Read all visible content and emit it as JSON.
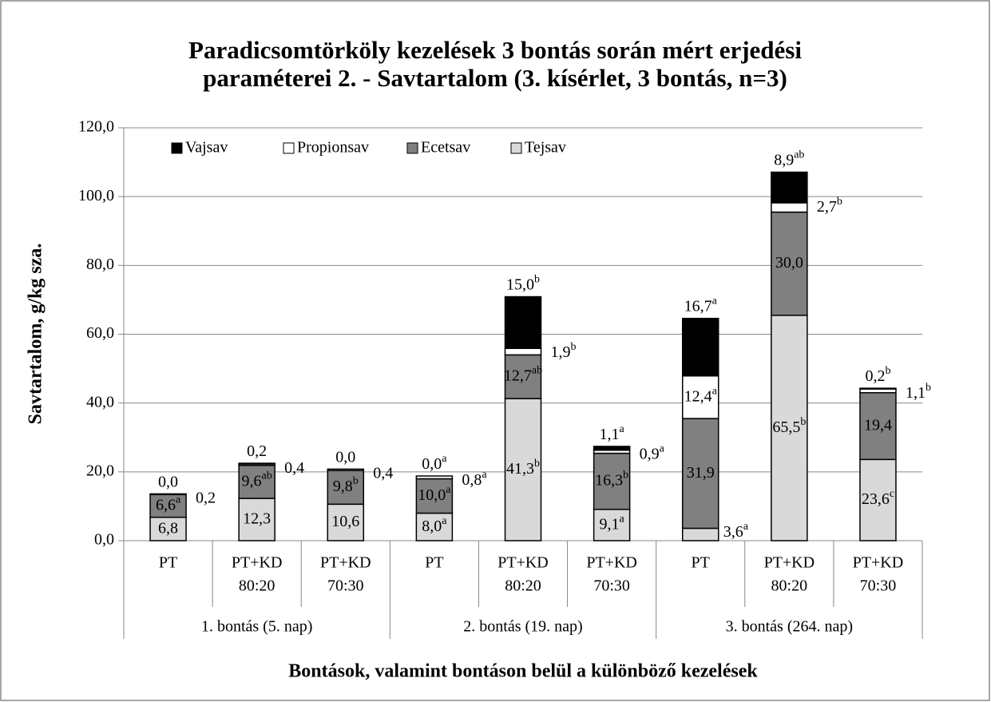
{
  "chart_data": {
    "type": "stacked_bar",
    "title": [
      "Paradicsomtörköly kezelések 3 bontás során mért erjedési",
      "paraméterei 2. - Savtartalom (3. kísérlet, 3 bontás, n=3)"
    ],
    "y_label": "Savtartalom, g/kg sza.",
    "x_label": "Bontások, valamint bontáson belül a különböző kezelések",
    "categories": [
      [
        "PT"
      ],
      [
        "PT+KD",
        "80:20"
      ],
      [
        "PT+KD",
        "70:30"
      ],
      [
        "PT"
      ],
      [
        "PT+KD",
        "80:20"
      ],
      [
        "PT+KD",
        "70:30"
      ],
      [
        "PT"
      ],
      [
        "PT+KD",
        "80:20"
      ],
      [
        "PT+KD",
        "70:30"
      ]
    ],
    "groups": [
      "1. bontás (5. nap)",
      "2. bontás (19. nap)",
      "3. bontás (264. nap)"
    ],
    "ylim": [
      0,
      120
    ],
    "yticks": [
      {
        "value": 0,
        "label": "0,0"
      },
      {
        "value": 20,
        "label": "20,0"
      },
      {
        "value": 40,
        "label": "40,0"
      },
      {
        "value": 60,
        "label": "60,0"
      },
      {
        "value": 80,
        "label": "80,0"
      },
      {
        "value": 100,
        "label": "100,0"
      },
      {
        "value": 120,
        "label": "120,0"
      }
    ],
    "grid": true,
    "series": [
      {
        "name": "Tejsav",
        "color": "#d9d9d9",
        "values": [
          6.8,
          12.3,
          10.6,
          8.0,
          41.3,
          9.1,
          3.6,
          65.5,
          23.6
        ],
        "value_labels": [
          "6,8",
          "12,3",
          "10,6",
          "8,0",
          "41,3",
          "9,1",
          "3,6",
          "65,5",
          "23,6"
        ],
        "label_sup": [
          null,
          null,
          null,
          "a",
          "b",
          "a",
          "a",
          "b",
          "c"
        ]
      },
      {
        "name": "Ecetsav",
        "color": "#808080",
        "values": [
          6.6,
          9.6,
          9.8,
          10.0,
          12.7,
          16.3,
          31.9,
          30.0,
          19.4
        ],
        "value_labels": [
          "6,6",
          "9,6",
          "9,8",
          "10,0",
          "12,7",
          "16,3",
          "31,9",
          "30,0",
          "19,4"
        ],
        "label_sup": [
          "a",
          "ab",
          "b",
          "a",
          "ab",
          "b",
          null,
          null,
          null
        ]
      },
      {
        "name": "Propionsav",
        "color": "#ffffff",
        "values": [
          0.2,
          0.4,
          0.4,
          0.8,
          1.9,
          0.9,
          12.4,
          2.7,
          1.1
        ],
        "value_labels": [
          "0,2",
          "0,4",
          "0,4",
          "0,8",
          "1,9",
          "0,9",
          "12,4",
          "2,7",
          "1,1"
        ],
        "label_sup": [
          null,
          null,
          null,
          "a",
          "b",
          "a",
          "a",
          "b",
          "b"
        ]
      },
      {
        "name": "Vajsav",
        "color": "#000000",
        "values": [
          0.0,
          0.2,
          0.0,
          0.0,
          15.0,
          1.1,
          16.7,
          8.9,
          0.2
        ],
        "value_labels": [
          "0,0",
          "0,2",
          "0,0",
          "0,0",
          "15,0",
          "1,1",
          "16,7",
          "8,9",
          "0,2"
        ],
        "label_sup": [
          null,
          null,
          null,
          "a",
          "b",
          "a",
          "a",
          "ab",
          "b"
        ]
      }
    ]
  }
}
